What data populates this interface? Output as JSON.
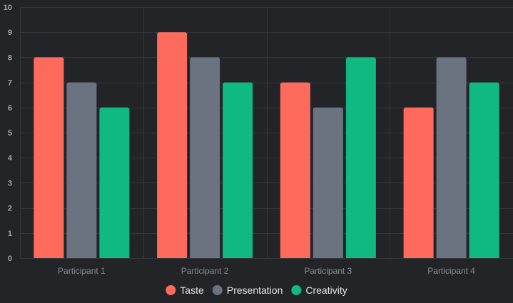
{
  "chart_data": {
    "type": "bar",
    "categories": [
      "Participant 1",
      "Participant 2",
      "Participant 3",
      "Participant 4"
    ],
    "series": [
      {
        "name": "Taste",
        "values": [
          8,
          9,
          7,
          6
        ],
        "color": "#fe6b5d"
      },
      {
        "name": "Presentation",
        "values": [
          7,
          8,
          6,
          8
        ],
        "color": "#6b7280"
      },
      {
        "name": "Creativity",
        "values": [
          6,
          7,
          8,
          7
        ],
        "color": "#10b981"
      }
    ],
    "yticks": [
      0,
      1,
      2,
      3,
      4,
      5,
      6,
      7,
      8,
      9,
      10
    ],
    "ylim": [
      0,
      10
    ],
    "grid": true,
    "legend_position": "bottom",
    "title": "",
    "xlabel": "",
    "ylabel": "",
    "colors": {
      "background": "#232427",
      "grid": "#34363b",
      "axis_text": "#a4a6ab",
      "category_text": "#8a8c91",
      "legend_text": "#e6e7ea"
    }
  }
}
